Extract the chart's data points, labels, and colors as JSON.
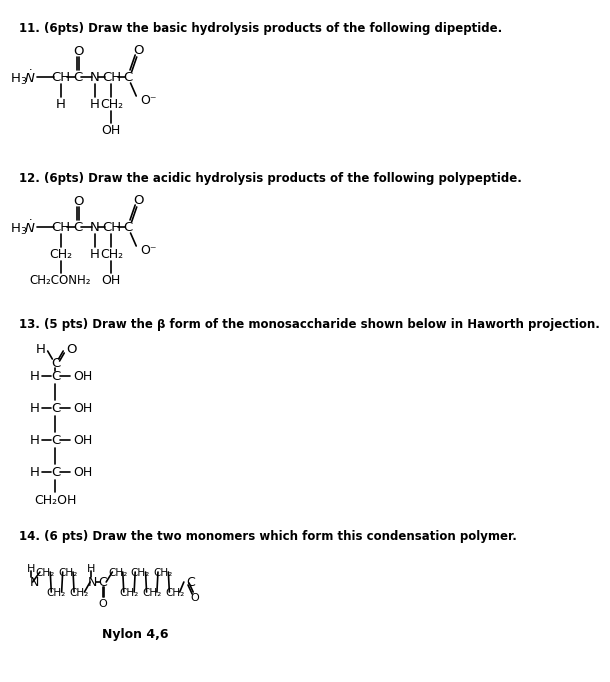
{
  "bg_color": "#ffffff",
  "text_color": "#000000",
  "q11_label": "11. (6pts) Draw the basic hydrolysis products of the following dipeptide.",
  "q12_label": "12. (6pts) Draw the acidic hydrolysis products of the following polypeptide.",
  "q13_label": "13. (5 pts) Draw the β form of the monosaccharide shown below in Haworth projection.",
  "q14_label": "14. (6 pts) Draw the two monomers which form this condensation polymer.",
  "nylon_label": "Nylon 4,6"
}
